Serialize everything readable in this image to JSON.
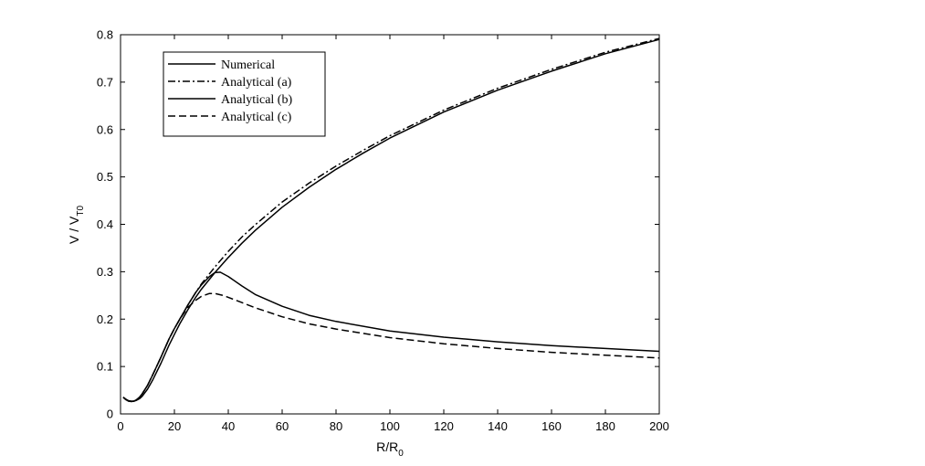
{
  "chart_data": {
    "type": "line",
    "xlabel": "R/R",
    "xlabel_sub": "0",
    "ylabel": "V / V",
    "ylabel_sub": "T0",
    "xlim": [
      0,
      200
    ],
    "ylim": [
      0,
      0.8
    ],
    "xticks": [
      0,
      20,
      40,
      60,
      80,
      100,
      120,
      140,
      160,
      180,
      200
    ],
    "yticks": [
      0,
      0.1,
      0.2,
      0.3,
      0.4,
      0.5,
      0.6,
      0.7,
      0.8
    ],
    "grid": false,
    "legend_position": "top-left",
    "series": [
      {
        "name": "Numerical",
        "style": "solid",
        "color": "#000000",
        "x": [
          1,
          2,
          3,
          4,
          5,
          6,
          7,
          8,
          10,
          12,
          15,
          18,
          20,
          22,
          25,
          28,
          30,
          35,
          40,
          45,
          50,
          60,
          70,
          80,
          90,
          100,
          120,
          140,
          160,
          180,
          200
        ],
        "y": [
          0.035,
          0.031,
          0.028,
          0.027,
          0.027,
          0.029,
          0.032,
          0.037,
          0.052,
          0.072,
          0.107,
          0.145,
          0.168,
          0.19,
          0.22,
          0.247,
          0.263,
          0.298,
          0.33,
          0.36,
          0.387,
          0.436,
          0.478,
          0.516,
          0.55,
          0.582,
          0.637,
          0.683,
          0.723,
          0.76,
          0.79
        ]
      },
      {
        "name": "Analytical (a)",
        "style": "dashdot",
        "color": "#000000",
        "x": [
          1,
          2,
          3,
          4,
          5,
          6,
          7,
          8,
          10,
          12,
          15,
          18,
          20,
          22,
          25,
          28,
          30,
          35,
          40,
          45,
          50,
          60,
          70,
          80,
          90,
          100,
          120,
          140,
          160,
          180,
          200
        ],
        "y": [
          0.035,
          0.03,
          0.027,
          0.026,
          0.027,
          0.03,
          0.035,
          0.042,
          0.06,
          0.083,
          0.12,
          0.158,
          0.18,
          0.2,
          0.23,
          0.257,
          0.274,
          0.31,
          0.343,
          0.373,
          0.399,
          0.447,
          0.487,
          0.523,
          0.556,
          0.587,
          0.641,
          0.687,
          0.727,
          0.763,
          0.792
        ]
      },
      {
        "name": "Analytical (b)",
        "style": "solid",
        "color": "#000000",
        "x": [
          1,
          2,
          3,
          4,
          5,
          6,
          7,
          8,
          10,
          12,
          15,
          18,
          20,
          22,
          25,
          28,
          30,
          33,
          35,
          37,
          40,
          45,
          50,
          60,
          70,
          80,
          100,
          120,
          140,
          160,
          180,
          200
        ],
        "y": [
          0.035,
          0.03,
          0.027,
          0.026,
          0.027,
          0.03,
          0.035,
          0.042,
          0.06,
          0.083,
          0.12,
          0.158,
          0.18,
          0.2,
          0.23,
          0.257,
          0.272,
          0.29,
          0.298,
          0.299,
          0.29,
          0.27,
          0.252,
          0.227,
          0.208,
          0.195,
          0.175,
          0.162,
          0.152,
          0.144,
          0.138,
          0.132
        ]
      },
      {
        "name": "Analytical (c)",
        "style": "dashed",
        "color": "#000000",
        "x": [
          1,
          2,
          3,
          4,
          5,
          6,
          7,
          8,
          10,
          12,
          15,
          18,
          20,
          22,
          25,
          28,
          30,
          33,
          35,
          38,
          40,
          45,
          50,
          60,
          70,
          80,
          100,
          120,
          140,
          160,
          180,
          200
        ],
        "y": [
          0.035,
          0.03,
          0.027,
          0.026,
          0.027,
          0.03,
          0.035,
          0.042,
          0.06,
          0.083,
          0.12,
          0.158,
          0.18,
          0.2,
          0.225,
          0.24,
          0.248,
          0.254,
          0.254,
          0.25,
          0.246,
          0.235,
          0.224,
          0.205,
          0.19,
          0.179,
          0.161,
          0.148,
          0.138,
          0.13,
          0.124,
          0.118
        ]
      }
    ]
  }
}
